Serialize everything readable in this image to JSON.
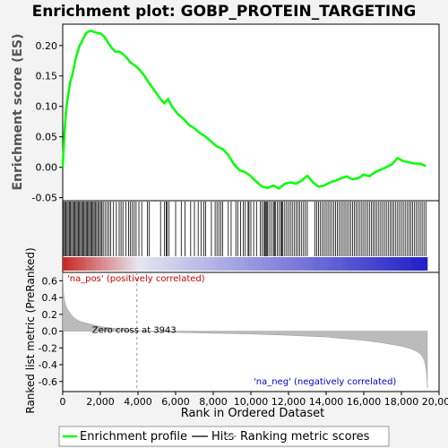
{
  "chart_data": {
    "type": "line",
    "title": "Enrichment plot: GOBP_PROTEIN_TARGETING",
    "es_panel": {
      "ylabel": "Enrichment score (ES)",
      "ylim": [
        -0.055,
        0.235
      ],
      "xlim": [
        0,
        20000
      ],
      "yticks": [
        {
          "v": 0.2,
          "label": "0.20"
        },
        {
          "v": 0.15,
          "label": "0.15"
        },
        {
          "v": 0.1,
          "label": "0.10"
        },
        {
          "v": 0.05,
          "label": "0.05"
        },
        {
          "v": 0.0,
          "label": "0.00"
        },
        {
          "v": -0.05,
          "label": "-0.05"
        }
      ],
      "series": [
        {
          "name": "Enrichment profile",
          "color": "#00ff00",
          "x": [
            0,
            100,
            200,
            300,
            400,
            500,
            600,
            700,
            800,
            900,
            1000,
            1100,
            1200,
            1300,
            1400,
            1500,
            1600,
            1700,
            1800,
            1900,
            2000,
            2200,
            2400,
            2600,
            2800,
            3000,
            3200,
            3400,
            3600,
            3800,
            4000,
            4300,
            4600,
            4900,
            5200,
            5400,
            5600,
            5800,
            6100,
            6400,
            6700,
            7000,
            7300,
            7600,
            7900,
            8200,
            8500,
            8800,
            9100,
            9400,
            9700,
            10000,
            10300,
            10600,
            10900,
            11200,
            11500,
            11800,
            12100,
            12400,
            12700,
            13000,
            13300,
            13600,
            13900,
            14200,
            14500,
            14800,
            15100,
            15400,
            15700,
            16000,
            16300,
            16600,
            16900,
            17200,
            17500,
            17800,
            18100,
            18400,
            18700,
            19000,
            19300
          ],
          "values": [
            0.0,
            0.06,
            0.1,
            0.12,
            0.14,
            0.15,
            0.165,
            0.18,
            0.19,
            0.2,
            0.205,
            0.212,
            0.218,
            0.222,
            0.223,
            0.224,
            0.223,
            0.222,
            0.221,
            0.22,
            0.22,
            0.215,
            0.205,
            0.196,
            0.19,
            0.19,
            0.186,
            0.18,
            0.172,
            0.168,
            0.163,
            0.152,
            0.138,
            0.125,
            0.112,
            0.105,
            0.112,
            0.1,
            0.088,
            0.08,
            0.07,
            0.064,
            0.056,
            0.05,
            0.042,
            0.034,
            0.03,
            0.02,
            0.005,
            -0.005,
            -0.008,
            -0.015,
            -0.024,
            -0.032,
            -0.034,
            -0.03,
            -0.035,
            -0.027,
            -0.025,
            -0.027,
            -0.022,
            -0.014,
            -0.025,
            -0.032,
            -0.03,
            -0.025,
            -0.022,
            -0.018,
            -0.015,
            -0.02,
            -0.018,
            -0.012,
            -0.015,
            -0.008,
            -0.004,
            0.0,
            0.005,
            0.015,
            0.01,
            0.008,
            0.006,
            0.006,
            0.002
          ]
        }
      ]
    },
    "hits_panel": {
      "hit_positions": [
        50,
        110,
        170,
        230,
        290,
        350,
        410,
        470,
        530,
        590,
        650,
        710,
        770,
        830,
        890,
        950,
        1010,
        1070,
        1130,
        1190,
        1250,
        1310,
        1370,
        1430,
        1490,
        1550,
        1610,
        1670,
        1730,
        1800,
        1870,
        1940,
        2010,
        2080,
        2150,
        2250,
        2350,
        2450,
        2550,
        2700,
        2850,
        3000,
        3100,
        3200,
        3350,
        3500,
        3600,
        3700,
        3800,
        3900,
        4050,
        4200,
        4500,
        4600,
        5200,
        5400,
        5500,
        5550,
        5650,
        6000,
        6300,
        6500,
        6800,
        7000,
        7200,
        7350,
        7500,
        7600,
        7900,
        8100,
        8200,
        8300,
        8400,
        8500,
        8800,
        8950,
        9200,
        9300,
        9450,
        9600,
        9700,
        9850,
        9900,
        10000,
        10150,
        10300,
        10500,
        10600,
        10700,
        10750,
        10800,
        10850,
        10900,
        11000,
        11100,
        11200,
        11250,
        11300,
        11400,
        11500,
        11600,
        11650,
        11700,
        11800,
        11900,
        12000,
        12100,
        12200,
        12300,
        12400,
        12500,
        12600,
        12700,
        12800,
        12900,
        13000,
        13400,
        13500,
        13600,
        13700,
        13800,
        13900,
        14000,
        14100,
        14200,
        14300,
        14400,
        14500,
        14600,
        14700,
        14800,
        14900,
        15000,
        15100,
        15200,
        15300,
        15400,
        15500,
        15600,
        15700,
        15800,
        15900,
        16000,
        16100,
        16200,
        16300,
        16400,
        16500,
        16600,
        16700,
        16800,
        16900,
        17000,
        17100,
        17200,
        17300,
        17400,
        17500,
        17600,
        17700,
        17800,
        17900,
        18000,
        18100,
        18200,
        18300,
        18400,
        18500,
        18600,
        18700,
        18800,
        18900,
        19000,
        19100,
        19200,
        19300
      ]
    },
    "rank_panel": {
      "ylabel": "Ranked list metric (PreRanked)",
      "xlabel": "Rank in Ordered Dataset",
      "ylim": [
        -0.72,
        0.7
      ],
      "yticks": [
        {
          "v": 0.6,
          "label": "0.6"
        },
        {
          "v": 0.4,
          "label": "0.4"
        },
        {
          "v": 0.2,
          "label": "0.2"
        },
        {
          "v": 0.0,
          "label": "0.0"
        },
        {
          "v": -0.2,
          "label": "-0.2"
        },
        {
          "v": -0.4,
          "label": "-0.4"
        },
        {
          "v": -0.6,
          "label": "-0.6"
        }
      ],
      "xticks": [
        {
          "v": 0,
          "label": "0"
        },
        {
          "v": 2000,
          "label": "2,000"
        },
        {
          "v": 4000,
          "label": "4,000"
        },
        {
          "v": 6000,
          "label": "6,000"
        },
        {
          "v": 8000,
          "label": "8,000"
        },
        {
          "v": 10000,
          "label": "10,000"
        },
        {
          "v": 12000,
          "label": "12,000"
        },
        {
          "v": 14000,
          "label": "14,000"
        },
        {
          "v": 16000,
          "label": "16,000"
        },
        {
          "v": 18000,
          "label": "18,000"
        },
        {
          "v": 20000,
          "label": "20,000"
        }
      ],
      "x": [
        0,
        50,
        100,
        200,
        400,
        600,
        800,
        1000,
        1500,
        2000,
        2500,
        3000,
        3500,
        3943,
        5000,
        6000,
        8000,
        10000,
        12000,
        14000,
        16000,
        17000,
        18000,
        18500,
        18800,
        19000,
        19100,
        19200,
        19300,
        19350,
        19380
      ],
      "values": [
        0.7,
        0.45,
        0.36,
        0.28,
        0.21,
        0.16,
        0.13,
        0.11,
        0.08,
        0.055,
        0.04,
        0.025,
        0.012,
        0.0,
        -0.01,
        -0.015,
        -0.025,
        -0.035,
        -0.05,
        -0.07,
        -0.11,
        -0.14,
        -0.18,
        -0.21,
        -0.24,
        -0.27,
        -0.3,
        -0.34,
        -0.42,
        -0.55,
        -0.68
      ],
      "zero_cross": {
        "rank": 3943,
        "label": "Zero cross at 3943"
      },
      "pos_label": "'na_pos' (positively correlated)",
      "neg_label": "'na_neg' (negatively correlated)",
      "pos_color": "#cc0000",
      "neg_color": "#0000cc"
    },
    "legend": {
      "placement": "bottom",
      "items": [
        {
          "label": "Enrichment profile",
          "color": "#00ff00"
        },
        {
          "label": "Hits",
          "color": "#000000"
        },
        {
          "label": "Ranking metric scores",
          "color": "#bbbbbb"
        }
      ]
    }
  }
}
